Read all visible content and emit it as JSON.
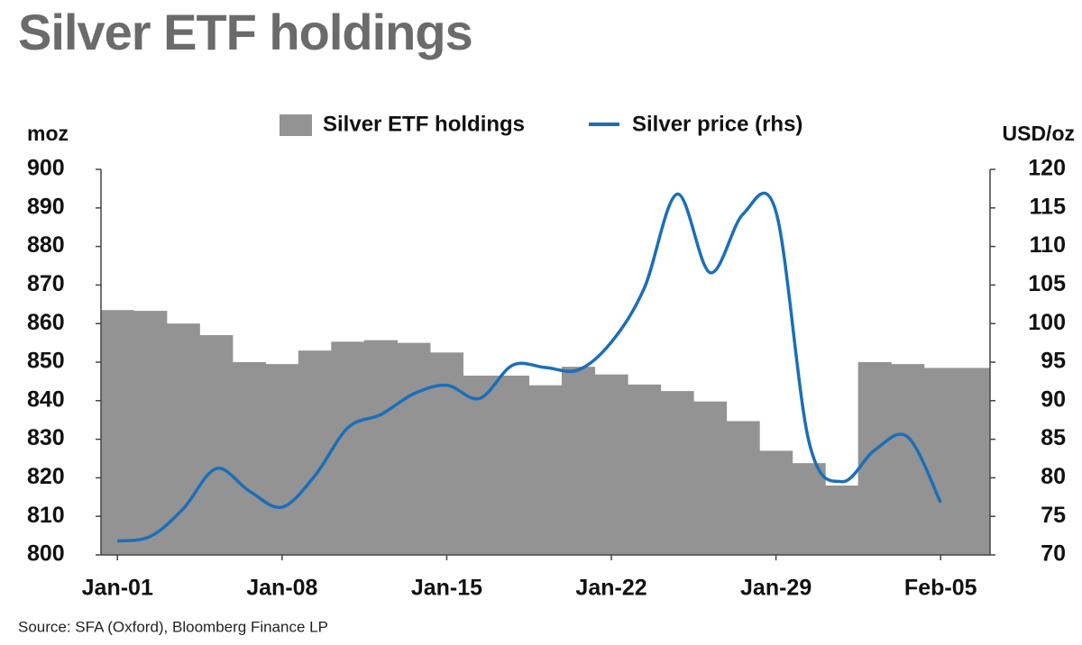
{
  "chart_data": {
    "type": "bar-line",
    "title": "Silver ETF holdings",
    "y_label": "moz",
    "y2_label": "USD/oz",
    "source": "Source: SFA (Oxford), Bloomberg Finance LP",
    "categories": [
      "Jan-01",
      null,
      null,
      null,
      null,
      "Jan-08",
      null,
      null,
      null,
      null,
      "Jan-15",
      null,
      null,
      null,
      null,
      "Jan-22",
      null,
      null,
      null,
      null,
      "Jan-29",
      null,
      null,
      null,
      null,
      "Feb-05",
      null
    ],
    "series": [
      {
        "name": "Silver ETF holdings",
        "color": "#939393",
        "kind": "bar",
        "values": [
          863.5,
          863.3,
          860,
          857,
          850,
          849.5,
          853,
          855.3,
          855.7,
          855,
          852.5,
          846.5,
          846.5,
          844,
          848.8,
          846.8,
          844.2,
          842.5,
          839.8,
          834.7,
          827,
          823.8,
          818,
          850,
          849.5,
          848.5,
          848.5
        ]
      },
      {
        "name": "Silver price (rhs)",
        "color": "#1a6fb8",
        "kind": "line",
        "axis": "y2",
        "values": [
          71.8,
          72.4,
          76,
          81.2,
          78.3,
          76.2,
          80.3,
          86.5,
          88.2,
          90.9,
          92,
          90.3,
          94.6,
          94.3,
          94,
          97.6,
          104.6,
          116.8,
          106.6,
          114.2,
          114.5,
          84.7,
          79.5,
          83.6,
          85.3,
          76.8,
          null
        ]
      }
    ],
    "ylim": [
      800,
      900
    ],
    "yticks": [
      800,
      810,
      820,
      830,
      840,
      850,
      860,
      870,
      880,
      890,
      900
    ],
    "y2lim": [
      70,
      120
    ],
    "y2ticks": [
      70,
      75,
      80,
      85,
      90,
      95,
      100,
      105,
      110,
      115,
      120
    ]
  }
}
